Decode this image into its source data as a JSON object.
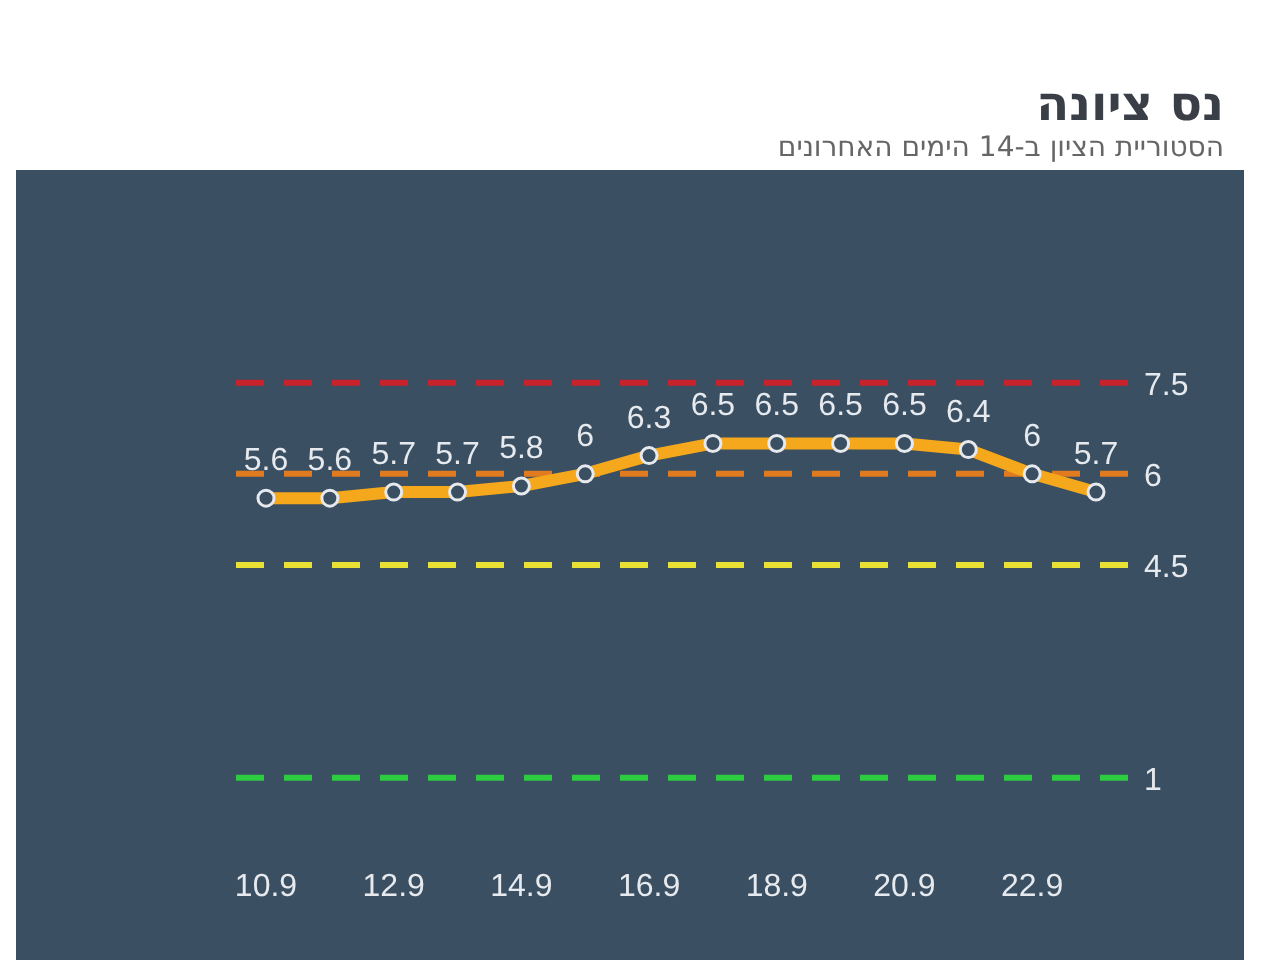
{
  "chart_data": {
    "type": "line",
    "title": "נס ציונה",
    "subtitle": "הסטוריית הציון ב-14 הימים האחרונים",
    "categories": [
      "10.9",
      null,
      "12.9",
      null,
      "14.9",
      null,
      "16.9",
      null,
      "18.9",
      null,
      "20.9",
      null,
      "22.9",
      null
    ],
    "series": [
      {
        "color": "#f5a81c",
        "values": [
          5.6,
          5.6,
          5.7,
          5.7,
          5.8,
          6,
          6.3,
          6.5,
          6.5,
          6.5,
          6.5,
          6.4,
          6,
          5.7
        ]
      }
    ],
    "ylim": [
      -2,
      11
    ],
    "ref_lines": [
      {
        "axis": "y",
        "value": 7.5,
        "label": "7.5",
        "color": "#c8232c",
        "line_style": "dashed"
      },
      {
        "axis": "y",
        "value": 6,
        "label": "6",
        "color": "#e07b20",
        "line_style": "dashed"
      },
      {
        "axis": "y",
        "value": 4.5,
        "label": "4.5",
        "color": "#e8e032",
        "line_style": "dashed"
      },
      {
        "axis": "y",
        "value": 1,
        "label": "1",
        "color": "#2ecc40",
        "line_style": "dashed"
      }
    ],
    "data_labels": true,
    "marker": "circle",
    "line_style": "solid"
  }
}
